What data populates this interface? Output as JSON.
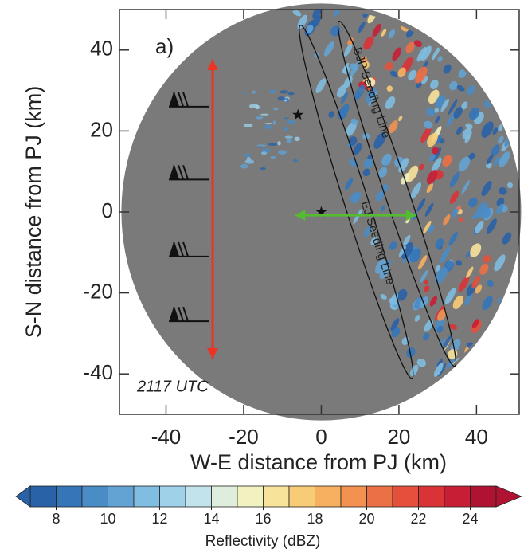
{
  "chart_data": {
    "type": "radar-map",
    "panel_label": "a)",
    "time_label": "2117 UTC",
    "xlabel": "W-E distance from PJ (km)",
    "ylabel": "S-N distance from PJ (km)",
    "xlim": [
      -52,
      51
    ],
    "ylim": [
      -50,
      50
    ],
    "xticks": [
      -40,
      -20,
      0,
      20,
      40
    ],
    "yticks": [
      -40,
      -20,
      0,
      20,
      40
    ],
    "range_ring_radius": 51.5,
    "stars": [
      [
        -6,
        24
      ],
      [
        0,
        0
      ]
    ],
    "seeding_lines": [
      {
        "label": "EJ Seeding Line",
        "from": [
          -5,
          45
        ],
        "to": [
          23,
          -40
        ]
      },
      {
        "label": "BJP Seeding Line",
        "from": [
          5,
          46
        ],
        "to": [
          34,
          -37
        ]
      }
    ],
    "red_arrow": {
      "x": -28,
      "y": [
        37.6,
        -36.2
      ],
      "color": "#ee3322"
    },
    "green_arrow": {
      "y": -0.8,
      "x": [
        -6.8,
        24.5
      ],
      "color": "#55bb33"
    },
    "wind_barbs": [
      [
        -29,
        26
      ],
      [
        -29,
        8
      ],
      [
        -29,
        -11
      ],
      [
        -29,
        -27
      ]
    ],
    "colorbar": {
      "label": "Reflectivity (dBZ)",
      "lim": [
        7,
        25
      ],
      "ticks": [
        8,
        10,
        12,
        14,
        16,
        18,
        20,
        22,
        24
      ],
      "colors": [
        "#2a62a8",
        "#3575b8",
        "#4a8cc6",
        "#63a3d3",
        "#80bde0",
        "#9fd1e8",
        "#c2e3ec",
        "#dfeedc",
        "#f2f1c0",
        "#f8e39a",
        "#f8cc77",
        "#f6b05f",
        "#f29150",
        "#ec7045",
        "#e4503c",
        "#d93337",
        "#c81e35",
        "#b01232"
      ]
    }
  }
}
